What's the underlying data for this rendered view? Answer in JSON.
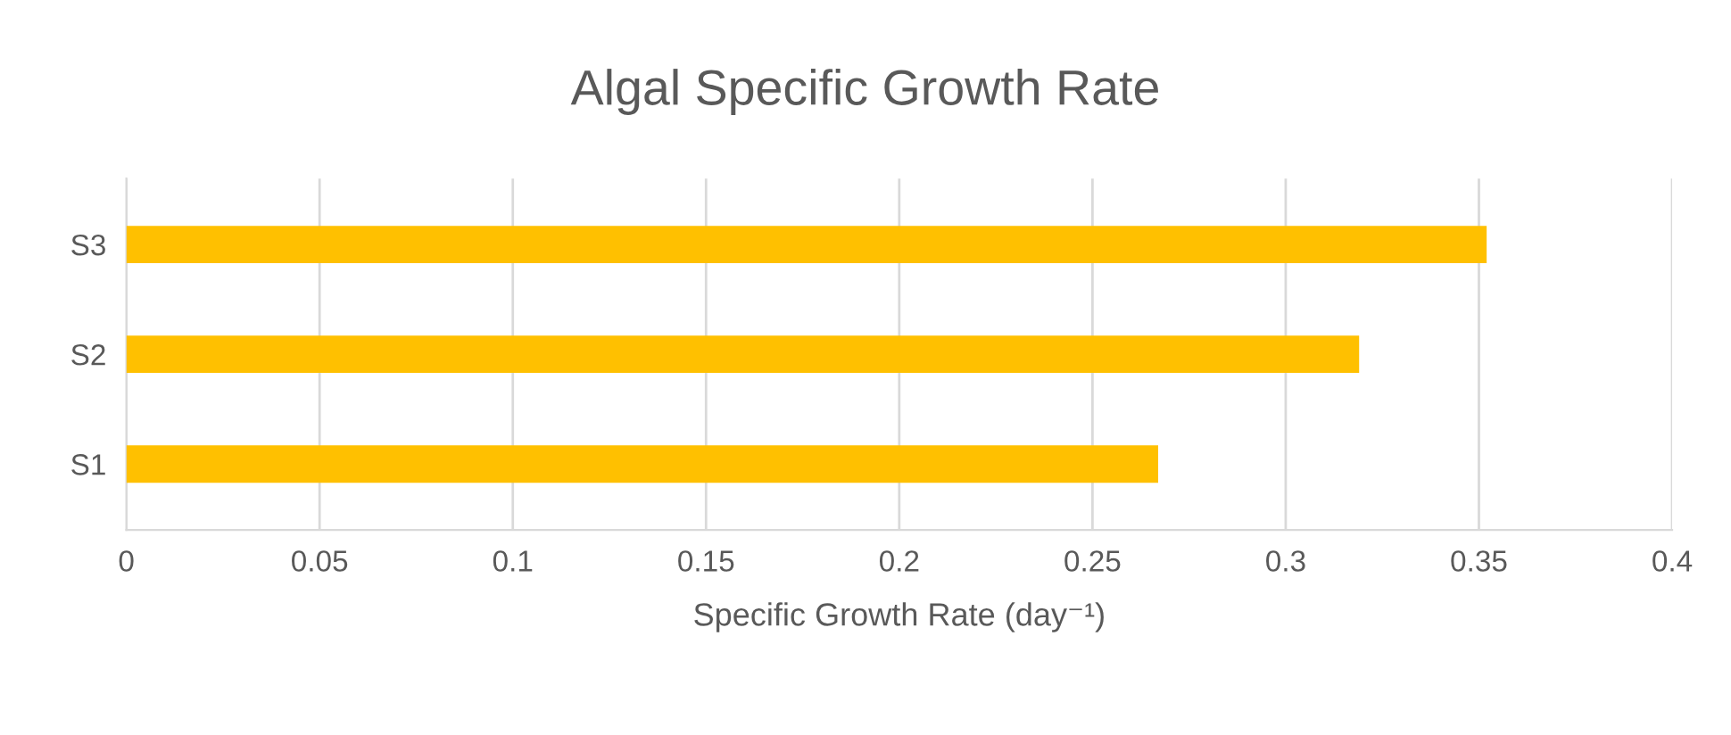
{
  "chart_data": {
    "type": "bar",
    "orientation": "horizontal",
    "title": "Algal Specific Growth Rate",
    "xlabel": "Specific Growth Rate (day⁻¹)",
    "categories": [
      "S3",
      "S2",
      "S1"
    ],
    "values": [
      0.352,
      0.319,
      0.267
    ],
    "color": "#ffc000",
    "xlim": [
      0,
      0.4
    ],
    "xticks": [
      0,
      0.05,
      0.1,
      0.15,
      0.2,
      0.25,
      0.3,
      0.35,
      0.4
    ],
    "grid": "x"
  }
}
